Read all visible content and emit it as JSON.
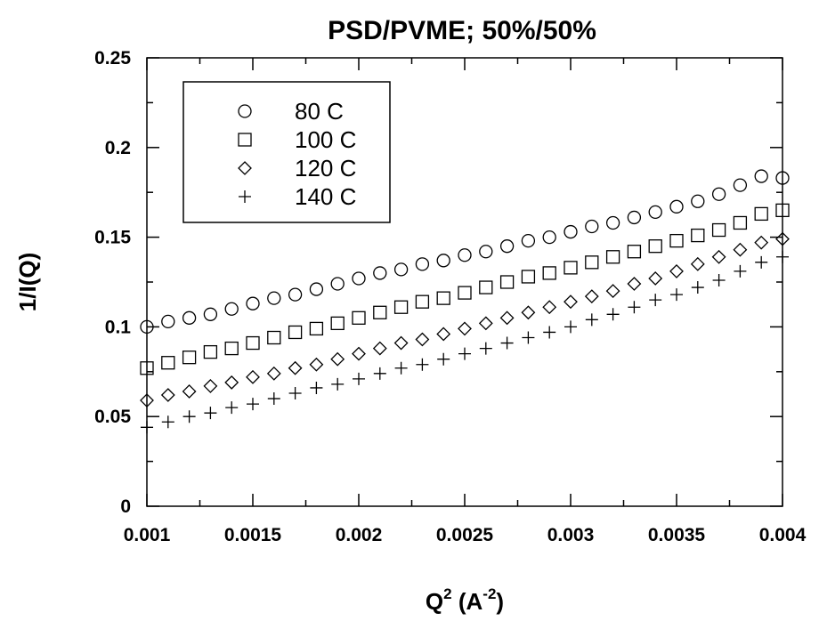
{
  "chart_data": {
    "type": "scatter",
    "title": "PSD/PVME;  50%/50%",
    "xlabel": "Q",
    "xlabel_sup": "2",
    "xlabel_unit_open": " (A",
    "xlabel_unit_sup": "-2",
    "xlabel_unit_close": ")",
    "ylabel": "1/I(Q)",
    "xlim": [
      0.001,
      0.004
    ],
    "ylim": [
      0,
      0.25
    ],
    "x_ticks": [
      0.001,
      0.0015,
      0.002,
      0.0025,
      0.003,
      0.0035,
      0.004
    ],
    "x_tick_labels": [
      "0.001",
      "0.0015",
      "0.002",
      "0.0025",
      "0.003",
      "0.0035",
      "0.004"
    ],
    "y_ticks": [
      0,
      0.05,
      0.1,
      0.15,
      0.2,
      0.25
    ],
    "y_tick_labels": [
      "0",
      "0.05",
      "0.1",
      "0.15",
      "0.2",
      "0.25"
    ],
    "grid": false,
    "legend_position": "top-left",
    "series": [
      {
        "name": "80 C",
        "marker": "circle",
        "x": [
          0.001,
          0.0011,
          0.0012,
          0.0013,
          0.0014,
          0.0015,
          0.0016,
          0.0017,
          0.0018,
          0.0019,
          0.002,
          0.0021,
          0.0022,
          0.0023,
          0.0024,
          0.0025,
          0.0026,
          0.0027,
          0.0028,
          0.0029,
          0.003,
          0.0031,
          0.0032,
          0.0033,
          0.0034,
          0.0035,
          0.0036,
          0.0037,
          0.0038,
          0.0039,
          0.004
        ],
        "y": [
          0.1,
          0.103,
          0.105,
          0.107,
          0.11,
          0.113,
          0.116,
          0.118,
          0.121,
          0.124,
          0.127,
          0.13,
          0.132,
          0.135,
          0.137,
          0.14,
          0.142,
          0.145,
          0.148,
          0.15,
          0.153,
          0.156,
          0.158,
          0.161,
          0.164,
          0.167,
          0.17,
          0.174,
          0.179,
          0.184,
          0.183
        ]
      },
      {
        "name": "100 C",
        "marker": "square",
        "x": [
          0.001,
          0.0011,
          0.0012,
          0.0013,
          0.0014,
          0.0015,
          0.0016,
          0.0017,
          0.0018,
          0.0019,
          0.002,
          0.0021,
          0.0022,
          0.0023,
          0.0024,
          0.0025,
          0.0026,
          0.0027,
          0.0028,
          0.0029,
          0.003,
          0.0031,
          0.0032,
          0.0033,
          0.0034,
          0.0035,
          0.0036,
          0.0037,
          0.0038,
          0.0039,
          0.004
        ],
        "y": [
          0.077,
          0.08,
          0.083,
          0.086,
          0.088,
          0.091,
          0.094,
          0.097,
          0.099,
          0.102,
          0.105,
          0.108,
          0.111,
          0.114,
          0.116,
          0.119,
          0.122,
          0.125,
          0.128,
          0.13,
          0.133,
          0.136,
          0.139,
          0.142,
          0.145,
          0.148,
          0.151,
          0.154,
          0.158,
          0.163,
          0.165
        ]
      },
      {
        "name": "120 C",
        "marker": "diamond",
        "x": [
          0.001,
          0.0011,
          0.0012,
          0.0013,
          0.0014,
          0.0015,
          0.0016,
          0.0017,
          0.0018,
          0.0019,
          0.002,
          0.0021,
          0.0022,
          0.0023,
          0.0024,
          0.0025,
          0.0026,
          0.0027,
          0.0028,
          0.0029,
          0.003,
          0.0031,
          0.0032,
          0.0033,
          0.0034,
          0.0035,
          0.0036,
          0.0037,
          0.0038,
          0.0039,
          0.004
        ],
        "y": [
          0.059,
          0.062,
          0.064,
          0.067,
          0.069,
          0.072,
          0.074,
          0.077,
          0.079,
          0.082,
          0.085,
          0.088,
          0.091,
          0.093,
          0.096,
          0.099,
          0.102,
          0.105,
          0.108,
          0.111,
          0.114,
          0.117,
          0.12,
          0.124,
          0.127,
          0.131,
          0.135,
          0.139,
          0.143,
          0.147,
          0.149
        ]
      },
      {
        "name": "140 C",
        "marker": "plus",
        "x": [
          0.001,
          0.0011,
          0.0012,
          0.0013,
          0.0014,
          0.0015,
          0.0016,
          0.0017,
          0.0018,
          0.0019,
          0.002,
          0.0021,
          0.0022,
          0.0023,
          0.0024,
          0.0025,
          0.0026,
          0.0027,
          0.0028,
          0.0029,
          0.003,
          0.0031,
          0.0032,
          0.0033,
          0.0034,
          0.0035,
          0.0036,
          0.0037,
          0.0038,
          0.0039,
          0.004
        ],
        "y": [
          0.044,
          0.047,
          0.05,
          0.052,
          0.055,
          0.057,
          0.06,
          0.063,
          0.066,
          0.068,
          0.071,
          0.074,
          0.077,
          0.079,
          0.082,
          0.085,
          0.088,
          0.091,
          0.094,
          0.097,
          0.1,
          0.104,
          0.107,
          0.111,
          0.115,
          0.118,
          0.122,
          0.126,
          0.131,
          0.136,
          0.139
        ]
      }
    ]
  }
}
